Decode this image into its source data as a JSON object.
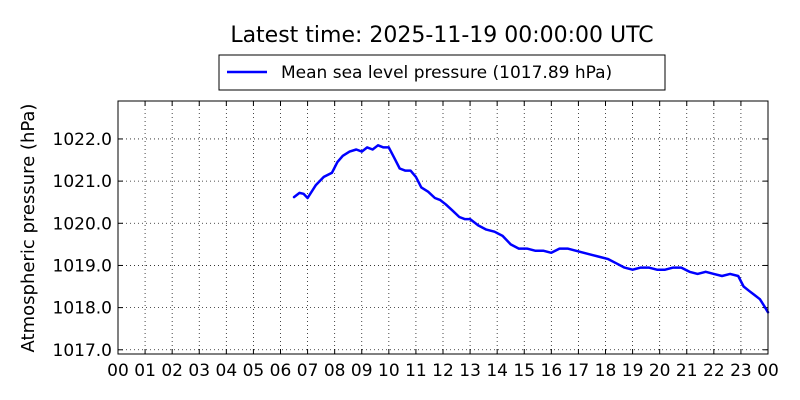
{
  "chart_data": {
    "type": "line",
    "title": "Latest time: 2025-11-19 00:00:00 UTC",
    "ylabel": "Atmospheric pressure (hPa)",
    "xlabel": "",
    "xlim": [
      0,
      24
    ],
    "ylim": [
      1016.9,
      1022.9
    ],
    "xtick_labels": [
      "00",
      "01",
      "02",
      "03",
      "04",
      "05",
      "06",
      "07",
      "08",
      "09",
      "10",
      "11",
      "12",
      "13",
      "14",
      "15",
      "16",
      "17",
      "18",
      "19",
      "20",
      "21",
      "22",
      "23",
      "00"
    ],
    "yticks": [
      1017.0,
      1018.0,
      1019.0,
      1020.0,
      1021.0,
      1022.0
    ],
    "ytick_labels": [
      "1017.0",
      "1018.0",
      "1019.0",
      "1020.0",
      "1021.0",
      "1022.0"
    ],
    "grid": true,
    "legend_position": "top-center, above plot",
    "series": [
      {
        "name": "Mean sea level pressure (1017.89 hPa)",
        "color": "#0000ff",
        "x": [
          6.5,
          6.7,
          6.85,
          7.0,
          7.3,
          7.6,
          7.9,
          8.1,
          8.3,
          8.55,
          8.8,
          9.0,
          9.2,
          9.4,
          9.6,
          9.8,
          10.0,
          10.2,
          10.4,
          10.6,
          10.8,
          11.0,
          11.2,
          11.45,
          11.7,
          11.9,
          12.1,
          12.35,
          12.6,
          12.8,
          13.0,
          13.3,
          13.6,
          13.9,
          14.2,
          14.5,
          14.8,
          15.1,
          15.4,
          15.7,
          16.0,
          16.3,
          16.6,
          16.9,
          17.2,
          17.5,
          17.8,
          18.1,
          18.4,
          18.7,
          19.0,
          19.3,
          19.6,
          19.9,
          20.2,
          20.5,
          20.8,
          21.1,
          21.4,
          21.7,
          22.0,
          22.3,
          22.6,
          22.9,
          23.1,
          23.3,
          23.5,
          23.7,
          23.85,
          24.0
        ],
        "y": [
          1020.62,
          1020.72,
          1020.7,
          1020.6,
          1020.9,
          1021.1,
          1021.2,
          1021.45,
          1021.6,
          1021.7,
          1021.75,
          1021.7,
          1021.8,
          1021.75,
          1021.85,
          1021.8,
          1021.8,
          1021.55,
          1021.3,
          1021.25,
          1021.25,
          1021.1,
          1020.85,
          1020.75,
          1020.6,
          1020.55,
          1020.45,
          1020.3,
          1020.15,
          1020.1,
          1020.1,
          1019.95,
          1019.85,
          1019.8,
          1019.7,
          1019.5,
          1019.4,
          1019.4,
          1019.35,
          1019.35,
          1019.3,
          1019.4,
          1019.4,
          1019.35,
          1019.3,
          1019.25,
          1019.2,
          1019.15,
          1019.05,
          1018.95,
          1018.9,
          1018.95,
          1018.95,
          1018.9,
          1018.9,
          1018.95,
          1018.95,
          1018.85,
          1018.8,
          1018.85,
          1018.8,
          1018.75,
          1018.8,
          1018.75,
          1018.5,
          1018.4,
          1018.3,
          1018.2,
          1018.05,
          1017.89
        ]
      }
    ]
  }
}
